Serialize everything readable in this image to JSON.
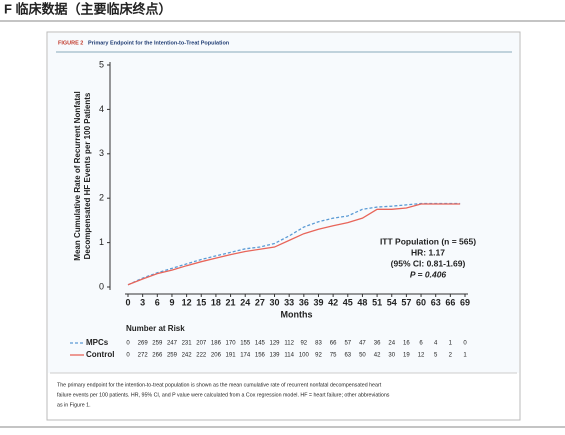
{
  "heading": "F 临床数据（主要临床终点）",
  "caption": [
    "The primary endpoint for the intention-to-treat population is shown as the mean cumulative rate of recurrent nonfatal decompensated heart",
    "failure events per 100 patients. HR, 95% CI, and P value were calculated from a Cox regression model. HF = heart failure; other abbreviations",
    "as in Figure 1."
  ],
  "chart_data": {
    "type": "line",
    "figure_label": "FIGURE 2",
    "title": "Primary Endpoint for the Intention-to-Treat Population",
    "ylabel": [
      "Mean Cumulative Rate of Recurrent Nonfatal",
      "Decompensated HF Events per 100 Patients"
    ],
    "xlabel": "Months",
    "xlim": [
      0,
      69
    ],
    "xticks": [
      0,
      3,
      6,
      9,
      12,
      15,
      18,
      21,
      24,
      27,
      30,
      33,
      36,
      39,
      42,
      45,
      48,
      51,
      54,
      57,
      60,
      63,
      66,
      69
    ],
    "ylim": [
      0,
      5
    ],
    "yticks": [
      0,
      1,
      2,
      3,
      4,
      5
    ],
    "x": [
      0,
      3,
      6,
      9,
      12,
      15,
      18,
      21,
      24,
      27,
      30,
      33,
      36,
      39,
      42,
      45,
      48,
      51,
      54,
      57,
      60,
      63,
      66,
      68
    ],
    "series": [
      {
        "name": "MPCs",
        "color": "#5b9bd5",
        "dashed": true,
        "values": [
          0.05,
          0.2,
          0.32,
          0.42,
          0.52,
          0.62,
          0.7,
          0.78,
          0.86,
          0.9,
          0.98,
          1.15,
          1.35,
          1.47,
          1.55,
          1.6,
          1.75,
          1.8,
          1.82,
          1.85,
          1.88,
          1.88,
          1.88,
          1.88
        ]
      },
      {
        "name": "Control",
        "color": "#e8655a",
        "dashed": false,
        "values": [
          0.05,
          0.18,
          0.3,
          0.38,
          0.48,
          0.57,
          0.65,
          0.73,
          0.8,
          0.85,
          0.9,
          1.05,
          1.2,
          1.3,
          1.38,
          1.45,
          1.55,
          1.75,
          1.75,
          1.78,
          1.87,
          1.87,
          1.87,
          1.87
        ]
      }
    ],
    "annotation": [
      "ITT Population (n = 565)",
      "HR: 1.17",
      "(95% CI: 0.81-1.69)",
      "P = 0.406"
    ],
    "risk_title": "Number at Risk",
    "number_at_risk": [
      [
        0,
        269,
        259,
        247,
        231,
        207,
        186,
        170,
        155,
        145,
        129,
        112,
        92,
        83,
        66,
        57,
        47,
        36,
        24,
        16,
        6,
        4,
        1,
        0
      ],
      [
        0,
        272,
        266,
        259,
        242,
        222,
        206,
        191,
        174,
        156,
        139,
        114,
        100,
        92,
        75,
        63,
        50,
        42,
        30,
        19,
        12,
        5,
        2,
        1
      ]
    ]
  }
}
